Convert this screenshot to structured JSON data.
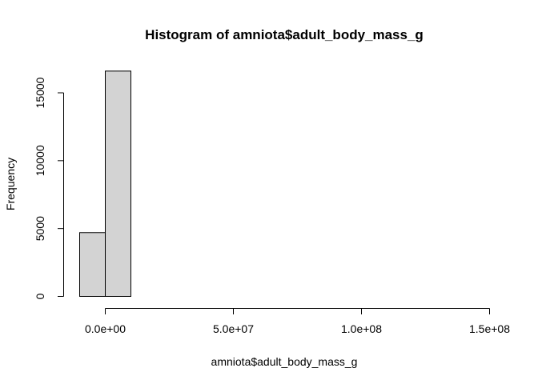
{
  "chart_data": {
    "type": "histogram",
    "title": "Histogram of amniota$adult_body_mass_g",
    "xlabel": "amniota$adult_body_mass_g",
    "ylabel": "Frequency",
    "xlim": [
      -10000000,
      150000000
    ],
    "ylim": [
      0,
      16600
    ],
    "bins": [
      {
        "from": -10000000,
        "to": 0,
        "count": 4700
      },
      {
        "from": 0,
        "to": 10000000,
        "count": 16600
      },
      {
        "from": 10000000,
        "to": 20000000,
        "count": 0
      },
      {
        "from": 20000000,
        "to": 30000000,
        "count": 0
      },
      {
        "from": 30000000,
        "to": 40000000,
        "count": 0
      },
      {
        "from": 40000000,
        "to": 50000000,
        "count": 0
      },
      {
        "from": 50000000,
        "to": 60000000,
        "count": 0
      },
      {
        "from": 60000000,
        "to": 70000000,
        "count": 0
      },
      {
        "from": 70000000,
        "to": 80000000,
        "count": 0
      },
      {
        "from": 80000000,
        "to": 90000000,
        "count": 0
      },
      {
        "from": 90000000,
        "to": 100000000,
        "count": 0
      },
      {
        "from": 100000000,
        "to": 110000000,
        "count": 0
      },
      {
        "from": 110000000,
        "to": 120000000,
        "count": 0
      },
      {
        "from": 120000000,
        "to": 130000000,
        "count": 0
      },
      {
        "from": 130000000,
        "to": 140000000,
        "count": 0
      },
      {
        "from": 140000000,
        "to": 150000000,
        "count": 0
      }
    ],
    "x_ticks": [
      {
        "value": 0,
        "label": "0.0e+00"
      },
      {
        "value": 50000000,
        "label": "5.0e+07"
      },
      {
        "value": 100000000,
        "label": "1.0e+08"
      },
      {
        "value": 150000000,
        "label": "1.5e+08"
      }
    ],
    "y_ticks": [
      {
        "value": 0,
        "label": "0"
      },
      {
        "value": 5000,
        "label": "5000"
      },
      {
        "value": 10000,
        "label": "10000"
      },
      {
        "value": 15000,
        "label": "15000"
      }
    ],
    "colors": {
      "bar_fill": "#d3d3d3",
      "bar_stroke": "#000000",
      "axis": "#000000"
    }
  }
}
